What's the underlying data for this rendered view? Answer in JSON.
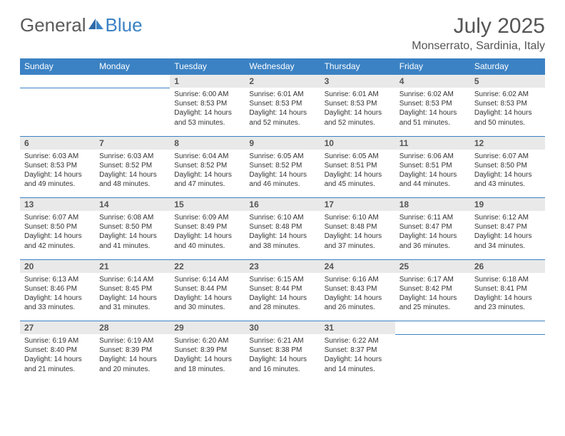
{
  "brand": {
    "part1": "General",
    "part2": "Blue"
  },
  "title": "July 2025",
  "location": "Monserrato, Sardinia, Italy",
  "colors": {
    "header_bg": "#3b82c4",
    "header_text": "#ffffff",
    "daynum_bg": "#e9e9e9",
    "border": "#3b82c4",
    "text": "#333333",
    "title_text": "#555555"
  },
  "weekdays": [
    "Sunday",
    "Monday",
    "Tuesday",
    "Wednesday",
    "Thursday",
    "Friday",
    "Saturday"
  ],
  "weeks": [
    [
      null,
      null,
      {
        "n": "1",
        "sr": "Sunrise: 6:00 AM",
        "ss": "Sunset: 8:53 PM",
        "d1": "Daylight: 14 hours",
        "d2": "and 53 minutes."
      },
      {
        "n": "2",
        "sr": "Sunrise: 6:01 AM",
        "ss": "Sunset: 8:53 PM",
        "d1": "Daylight: 14 hours",
        "d2": "and 52 minutes."
      },
      {
        "n": "3",
        "sr": "Sunrise: 6:01 AM",
        "ss": "Sunset: 8:53 PM",
        "d1": "Daylight: 14 hours",
        "d2": "and 52 minutes."
      },
      {
        "n": "4",
        "sr": "Sunrise: 6:02 AM",
        "ss": "Sunset: 8:53 PM",
        "d1": "Daylight: 14 hours",
        "d2": "and 51 minutes."
      },
      {
        "n": "5",
        "sr": "Sunrise: 6:02 AM",
        "ss": "Sunset: 8:53 PM",
        "d1": "Daylight: 14 hours",
        "d2": "and 50 minutes."
      }
    ],
    [
      {
        "n": "6",
        "sr": "Sunrise: 6:03 AM",
        "ss": "Sunset: 8:53 PM",
        "d1": "Daylight: 14 hours",
        "d2": "and 49 minutes."
      },
      {
        "n": "7",
        "sr": "Sunrise: 6:03 AM",
        "ss": "Sunset: 8:52 PM",
        "d1": "Daylight: 14 hours",
        "d2": "and 48 minutes."
      },
      {
        "n": "8",
        "sr": "Sunrise: 6:04 AM",
        "ss": "Sunset: 8:52 PM",
        "d1": "Daylight: 14 hours",
        "d2": "and 47 minutes."
      },
      {
        "n": "9",
        "sr": "Sunrise: 6:05 AM",
        "ss": "Sunset: 8:52 PM",
        "d1": "Daylight: 14 hours",
        "d2": "and 46 minutes."
      },
      {
        "n": "10",
        "sr": "Sunrise: 6:05 AM",
        "ss": "Sunset: 8:51 PM",
        "d1": "Daylight: 14 hours",
        "d2": "and 45 minutes."
      },
      {
        "n": "11",
        "sr": "Sunrise: 6:06 AM",
        "ss": "Sunset: 8:51 PM",
        "d1": "Daylight: 14 hours",
        "d2": "and 44 minutes."
      },
      {
        "n": "12",
        "sr": "Sunrise: 6:07 AM",
        "ss": "Sunset: 8:50 PM",
        "d1": "Daylight: 14 hours",
        "d2": "and 43 minutes."
      }
    ],
    [
      {
        "n": "13",
        "sr": "Sunrise: 6:07 AM",
        "ss": "Sunset: 8:50 PM",
        "d1": "Daylight: 14 hours",
        "d2": "and 42 minutes."
      },
      {
        "n": "14",
        "sr": "Sunrise: 6:08 AM",
        "ss": "Sunset: 8:50 PM",
        "d1": "Daylight: 14 hours",
        "d2": "and 41 minutes."
      },
      {
        "n": "15",
        "sr": "Sunrise: 6:09 AM",
        "ss": "Sunset: 8:49 PM",
        "d1": "Daylight: 14 hours",
        "d2": "and 40 minutes."
      },
      {
        "n": "16",
        "sr": "Sunrise: 6:10 AM",
        "ss": "Sunset: 8:48 PM",
        "d1": "Daylight: 14 hours",
        "d2": "and 38 minutes."
      },
      {
        "n": "17",
        "sr": "Sunrise: 6:10 AM",
        "ss": "Sunset: 8:48 PM",
        "d1": "Daylight: 14 hours",
        "d2": "and 37 minutes."
      },
      {
        "n": "18",
        "sr": "Sunrise: 6:11 AM",
        "ss": "Sunset: 8:47 PM",
        "d1": "Daylight: 14 hours",
        "d2": "and 36 minutes."
      },
      {
        "n": "19",
        "sr": "Sunrise: 6:12 AM",
        "ss": "Sunset: 8:47 PM",
        "d1": "Daylight: 14 hours",
        "d2": "and 34 minutes."
      }
    ],
    [
      {
        "n": "20",
        "sr": "Sunrise: 6:13 AM",
        "ss": "Sunset: 8:46 PM",
        "d1": "Daylight: 14 hours",
        "d2": "and 33 minutes."
      },
      {
        "n": "21",
        "sr": "Sunrise: 6:14 AM",
        "ss": "Sunset: 8:45 PM",
        "d1": "Daylight: 14 hours",
        "d2": "and 31 minutes."
      },
      {
        "n": "22",
        "sr": "Sunrise: 6:14 AM",
        "ss": "Sunset: 8:44 PM",
        "d1": "Daylight: 14 hours",
        "d2": "and 30 minutes."
      },
      {
        "n": "23",
        "sr": "Sunrise: 6:15 AM",
        "ss": "Sunset: 8:44 PM",
        "d1": "Daylight: 14 hours",
        "d2": "and 28 minutes."
      },
      {
        "n": "24",
        "sr": "Sunrise: 6:16 AM",
        "ss": "Sunset: 8:43 PM",
        "d1": "Daylight: 14 hours",
        "d2": "and 26 minutes."
      },
      {
        "n": "25",
        "sr": "Sunrise: 6:17 AM",
        "ss": "Sunset: 8:42 PM",
        "d1": "Daylight: 14 hours",
        "d2": "and 25 minutes."
      },
      {
        "n": "26",
        "sr": "Sunrise: 6:18 AM",
        "ss": "Sunset: 8:41 PM",
        "d1": "Daylight: 14 hours",
        "d2": "and 23 minutes."
      }
    ],
    [
      {
        "n": "27",
        "sr": "Sunrise: 6:19 AM",
        "ss": "Sunset: 8:40 PM",
        "d1": "Daylight: 14 hours",
        "d2": "and 21 minutes."
      },
      {
        "n": "28",
        "sr": "Sunrise: 6:19 AM",
        "ss": "Sunset: 8:39 PM",
        "d1": "Daylight: 14 hours",
        "d2": "and 20 minutes."
      },
      {
        "n": "29",
        "sr": "Sunrise: 6:20 AM",
        "ss": "Sunset: 8:39 PM",
        "d1": "Daylight: 14 hours",
        "d2": "and 18 minutes."
      },
      {
        "n": "30",
        "sr": "Sunrise: 6:21 AM",
        "ss": "Sunset: 8:38 PM",
        "d1": "Daylight: 14 hours",
        "d2": "and 16 minutes."
      },
      {
        "n": "31",
        "sr": "Sunrise: 6:22 AM",
        "ss": "Sunset: 8:37 PM",
        "d1": "Daylight: 14 hours",
        "d2": "and 14 minutes."
      },
      null,
      null
    ]
  ]
}
